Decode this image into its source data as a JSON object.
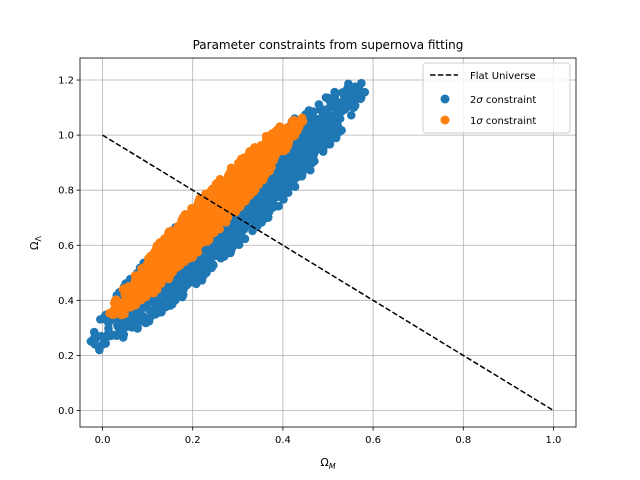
{
  "chart_data": {
    "type": "scatter",
    "title": "Parameter constraints from supernova fitting",
    "xlabel": {
      "base": "Ω",
      "sub": "M"
    },
    "ylabel": {
      "base": "Ω",
      "sub": "Λ"
    },
    "xlim": [
      -0.05,
      1.05
    ],
    "ylim": [
      -0.06,
      1.28
    ],
    "xticks": [
      0.0,
      0.2,
      0.4,
      0.6,
      0.8,
      1.0
    ],
    "xtick_labels": [
      "0.0",
      "0.2",
      "0.4",
      "0.6",
      "0.8",
      "1.0"
    ],
    "yticks": [
      0.0,
      0.2,
      0.4,
      0.6,
      0.8,
      1.0,
      1.2
    ],
    "ytick_labels": [
      "0.0",
      "0.2",
      "0.4",
      "0.6",
      "0.8",
      "1.0",
      "1.2"
    ],
    "grid": true,
    "legend_position": "top-right",
    "series": [
      {
        "name": "Flat Universe",
        "kind": "line",
        "style": "dashed",
        "color": "#000000",
        "x": [
          0.0,
          1.0
        ],
        "y": [
          1.0,
          0.0
        ]
      },
      {
        "name": "2σ constraint",
        "kind": "scatter",
        "color": "#1f77b4",
        "region": {
          "shape": "ellipse",
          "center": [
            0.28,
            0.71
          ],
          "major_axis_end_low": [
            0.0,
            0.25
          ],
          "major_axis_end_high": [
            0.56,
            1.17
          ],
          "half_width": 0.075,
          "x_range": [
            0.0,
            0.57
          ],
          "y_range": [
            0.2,
            1.22
          ]
        }
      },
      {
        "name": "1σ constraint",
        "kind": "scatter",
        "color": "#ff7f0e",
        "region": {
          "shape": "ellipse",
          "center": [
            0.23,
            0.7
          ],
          "major_axis_end_low": [
            0.03,
            0.35
          ],
          "major_axis_end_high": [
            0.43,
            1.05
          ],
          "half_width": 0.045,
          "x_range": [
            0.02,
            0.44
          ],
          "y_range": [
            0.33,
            1.07
          ]
        }
      }
    ],
    "legend": [
      {
        "label": "Flat Universe",
        "symbol": "dashed-line"
      },
      {
        "label_prefix": "2",
        "label_symbol": "σ",
        "label_suffix": " constraint",
        "symbol": "dot"
      },
      {
        "label_prefix": "1",
        "label_symbol": "σ",
        "label_suffix": " constraint",
        "symbol": "dot"
      }
    ]
  }
}
